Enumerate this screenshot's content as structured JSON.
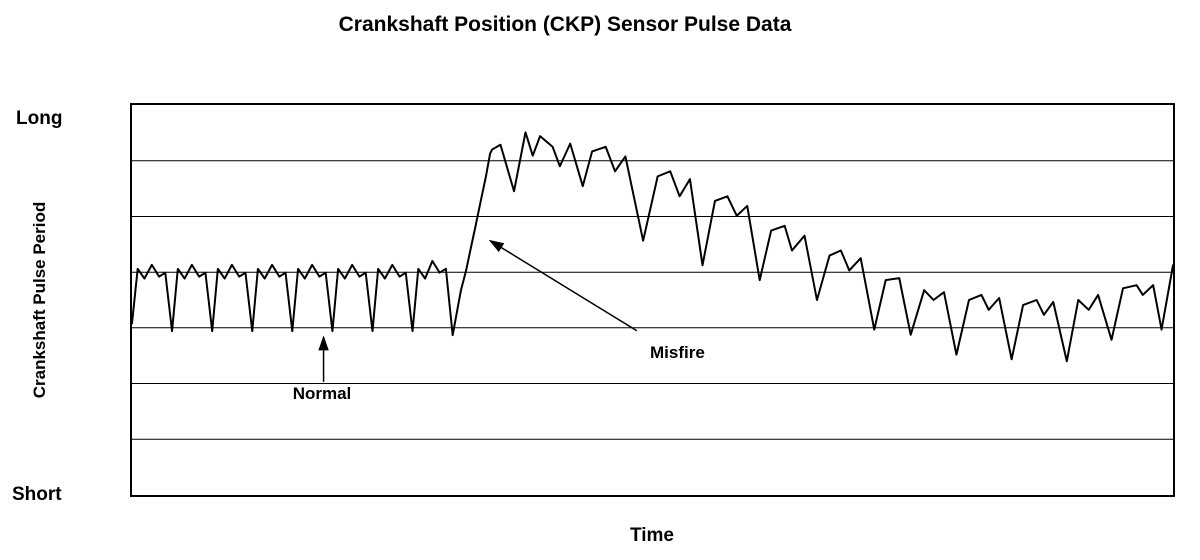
{
  "chart_data": {
    "type": "line",
    "title": "Crankshaft Position (CKP) Sensor Pulse Data",
    "xlabel": "Time",
    "ylabel": "Crankshaft Pulse Period",
    "y_axis_top_label": "Long",
    "y_axis_bottom_label": "Short",
    "x_range": [
      0,
      100
    ],
    "y_range": [
      0,
      100
    ],
    "grid": true,
    "gridlines_y": [
      14.3,
      28.6,
      42.9,
      57.1,
      71.4,
      85.7
    ],
    "line_color": "#000000",
    "background_color": "#ffffff",
    "points": [
      [
        0,
        44
      ],
      [
        0.55,
        58
      ],
      [
        1.2,
        55.5
      ],
      [
        1.9,
        59
      ],
      [
        2.6,
        56
      ],
      [
        3.2,
        57
      ],
      [
        3.85,
        42
      ],
      [
        4.4,
        58
      ],
      [
        5.05,
        55.5
      ],
      [
        5.75,
        59
      ],
      [
        6.45,
        56
      ],
      [
        7.05,
        57
      ],
      [
        7.7,
        42
      ],
      [
        8.25,
        58
      ],
      [
        8.9,
        55.5
      ],
      [
        9.6,
        59
      ],
      [
        10.3,
        56
      ],
      [
        10.9,
        57
      ],
      [
        11.55,
        42
      ],
      [
        12.1,
        58
      ],
      [
        12.75,
        55.5
      ],
      [
        13.45,
        59
      ],
      [
        14.15,
        56
      ],
      [
        14.75,
        57
      ],
      [
        15.4,
        42
      ],
      [
        15.95,
        58
      ],
      [
        16.6,
        55.5
      ],
      [
        17.3,
        59
      ],
      [
        18.0,
        56
      ],
      [
        18.6,
        57
      ],
      [
        19.25,
        42
      ],
      [
        19.8,
        58
      ],
      [
        20.45,
        55.5
      ],
      [
        21.15,
        59
      ],
      [
        21.85,
        56
      ],
      [
        22.45,
        57
      ],
      [
        23.1,
        42
      ],
      [
        23.65,
        58
      ],
      [
        24.3,
        55.5
      ],
      [
        25.0,
        59
      ],
      [
        25.7,
        56
      ],
      [
        26.3,
        57
      ],
      [
        26.95,
        42
      ],
      [
        27.5,
        58
      ],
      [
        28.15,
        55.5
      ],
      [
        28.85,
        60
      ],
      [
        29.55,
        57
      ],
      [
        30.15,
        58
      ],
      [
        30.8,
        41
      ],
      [
        31.6,
        52.5
      ],
      [
        32.1,
        57.6
      ],
      [
        32.5,
        62.7
      ],
      [
        33.0,
        69
      ],
      [
        33.5,
        75.4
      ],
      [
        34.0,
        81.7
      ],
      [
        34.4,
        87.6
      ],
      [
        34.6,
        88.6
      ],
      [
        35.4,
        89.8
      ],
      [
        36.7,
        77.9
      ],
      [
        37.8,
        93
      ],
      [
        38.5,
        87
      ],
      [
        39.2,
        92
      ],
      [
        40.4,
        89.3
      ],
      [
        41.1,
        84.3
      ],
      [
        42.1,
        90.1
      ],
      [
        43.3,
        79.2
      ],
      [
        44.2,
        88.1
      ],
      [
        45.5,
        89.3
      ],
      [
        46.4,
        83
      ],
      [
        47.4,
        86.8
      ],
      [
        49.1,
        65.2
      ],
      [
        50.5,
        81.7
      ],
      [
        51.7,
        83
      ],
      [
        52.6,
        76.6
      ],
      [
        53.6,
        81
      ],
      [
        54.8,
        58.9
      ],
      [
        56.0,
        75.4
      ],
      [
        57.2,
        76.6
      ],
      [
        58.1,
        71.6
      ],
      [
        59.1,
        74.1
      ],
      [
        60.3,
        55.1
      ],
      [
        61.4,
        67.8
      ],
      [
        62.7,
        69
      ],
      [
        63.4,
        62.7
      ],
      [
        64.6,
        66.5
      ],
      [
        65.8,
        50
      ],
      [
        67.0,
        61.4
      ],
      [
        68.1,
        62.7
      ],
      [
        68.9,
        57.6
      ],
      [
        70.0,
        60.7
      ],
      [
        71.3,
        42.4
      ],
      [
        72.4,
        55.1
      ],
      [
        73.7,
        55.6
      ],
      [
        74.8,
        41.1
      ],
      [
        76.1,
        52.5
      ],
      [
        77.0,
        50
      ],
      [
        78.0,
        52
      ],
      [
        79.2,
        36
      ],
      [
        80.4,
        50
      ],
      [
        81.6,
        51.3
      ],
      [
        82.3,
        47.5
      ],
      [
        83.3,
        50.5
      ],
      [
        84.5,
        34.8
      ],
      [
        85.6,
        48.7
      ],
      [
        86.9,
        50
      ],
      [
        87.6,
        46.2
      ],
      [
        88.5,
        49.5
      ],
      [
        89.8,
        34.3
      ],
      [
        90.9,
        50
      ],
      [
        91.9,
        47.5
      ],
      [
        92.8,
        51.3
      ],
      [
        94.1,
        39.8
      ],
      [
        95.2,
        53
      ],
      [
        96.5,
        53.8
      ],
      [
        97.1,
        51.3
      ],
      [
        98.1,
        53.8
      ],
      [
        98.9,
        42.4
      ],
      [
        100,
        58.9
      ]
    ],
    "annotations": [
      {
        "label": "Normal",
        "arrow": {
          "from": [
            18.4,
            29.0
          ],
          "to": [
            18.4,
            40.5
          ]
        }
      },
      {
        "label": "Misfire",
        "arrow": {
          "from": [
            48.5,
            42.1
          ],
          "to": [
            34.4,
            65.2
          ]
        }
      }
    ]
  }
}
